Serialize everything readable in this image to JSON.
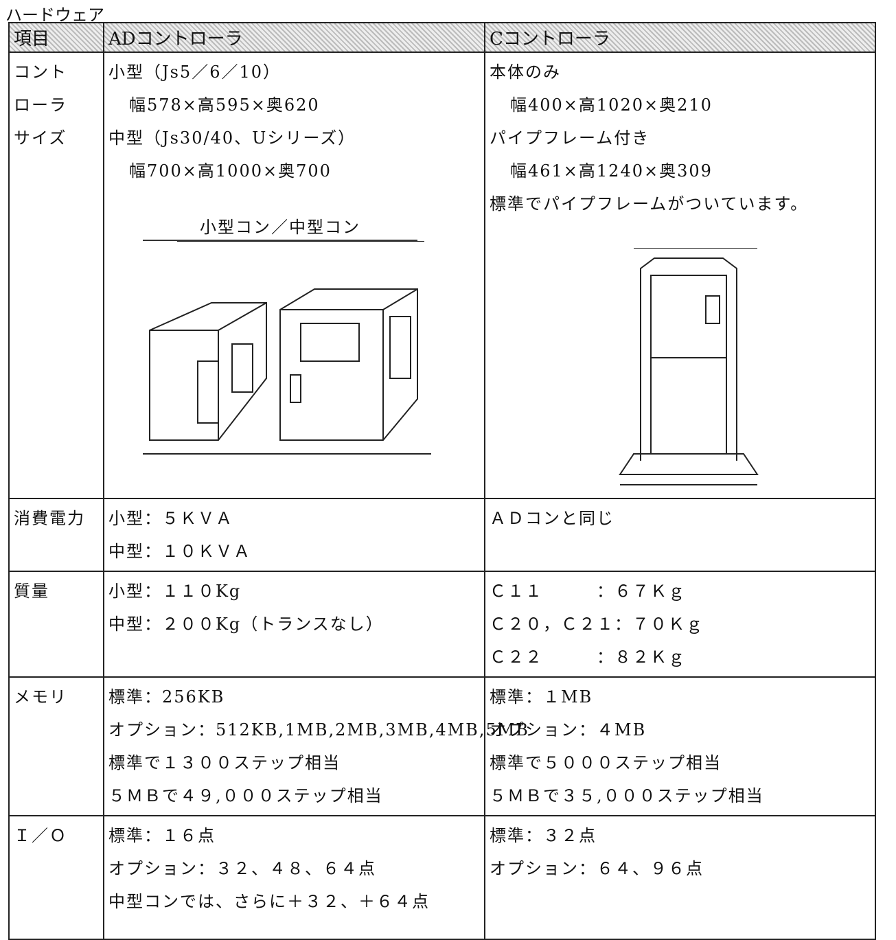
{
  "title": "ハードウェア",
  "table": {
    "header": [
      "項目",
      "ADコントローラ",
      "Cコントローラ"
    ],
    "rows": [
      {
        "label": [
          "コント",
          "ローラ",
          "サイズ"
        ],
        "ad": [
          "小型（Js5／6／10）",
          "幅578×高595×奥620",
          "中型（Js30/40、Uシリーズ）",
          "幅700×高1000×奥700"
        ],
        "ad_figure": "小型コン／中型コン",
        "c": [
          "本体のみ",
          "幅400×高1020×奥210",
          "パイプフレーム付き",
          "幅461×高1240×奥309",
          "標準でパイプフレームがついています。"
        ]
      },
      {
        "label": [
          "消費電力"
        ],
        "ad": [
          "小型：５ＫＶＡ",
          "中型：１０ＫＶＡ"
        ],
        "c": [
          "ＡＤコンと同じ"
        ]
      },
      {
        "label": [
          "質量"
        ],
        "ad": [
          "小型：１１０Kg",
          "中型：２００Kg（トランスなし）"
        ],
        "c": [
          "Ｃ１１　　　：６７Ｋｇ",
          "Ｃ２０，Ｃ２１：７０Ｋｇ",
          "Ｃ２２　　　：８２Ｋｇ"
        ]
      },
      {
        "label": [
          "メモリ"
        ],
        "ad": [
          "標準：256KB",
          "オプション：512KB,1MB,2MB,3MB,4MB,5MB",
          "標準で１３００ステップ相当",
          "５ＭＢで４９,０００ステップ相当"
        ],
        "c": [
          "標準：１MB",
          "オプション：４MB",
          "標準で５０００ステップ相当",
          "５ＭＢで３５,０００ステップ相当"
        ]
      },
      {
        "label": [
          "Ｉ／Ｏ"
        ],
        "ad": [
          "標準：１６点",
          "オプション：３２、４８、６４点",
          "中型コンでは、さらに＋３２、＋６４点"
        ],
        "c": [
          "標準：３２点",
          "オプション：６４、９６点"
        ]
      }
    ]
  }
}
